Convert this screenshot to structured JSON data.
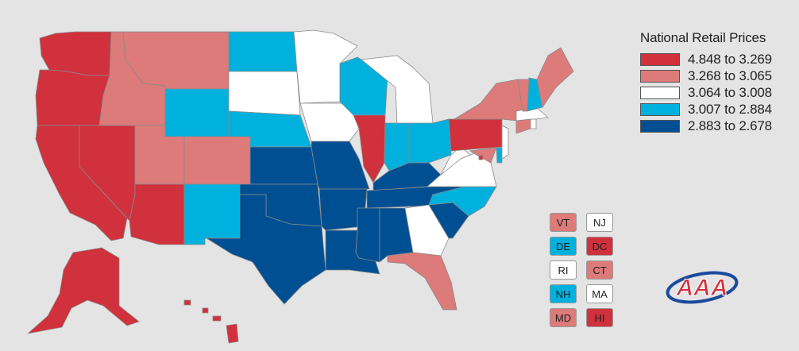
{
  "legend": {
    "title": "National Retail Prices",
    "items": [
      {
        "label": "4.848 to 3.269",
        "color": "#d0313c"
      },
      {
        "label": "3.268 to 3.065",
        "color": "#dd7a7a"
      },
      {
        "label": "3.064 to 3.008",
        "color": "#ffffff"
      },
      {
        "label": "3.007 to 2.884",
        "color": "#00b1dd"
      },
      {
        "label": "2.883 to 2.678",
        "color": "#004f93"
      }
    ]
  },
  "small_states": [
    {
      "code": "VT",
      "color": "#dd7a7a"
    },
    {
      "code": "NJ",
      "color": "#ffffff"
    },
    {
      "code": "DE",
      "color": "#00b1dd"
    },
    {
      "code": "DC",
      "color": "#d0313c"
    },
    {
      "code": "RI",
      "color": "#ffffff"
    },
    {
      "code": "CT",
      "color": "#dd7a7a"
    },
    {
      "code": "NH",
      "color": "#00b1dd"
    },
    {
      "code": "MA",
      "color": "#ffffff"
    },
    {
      "code": "MD",
      "color": "#dd7a7a"
    },
    {
      "code": "HI",
      "color": "#d0313c"
    }
  ],
  "logo": {
    "text": "AAA",
    "icon": "aaa-logo-icon"
  },
  "state_bins": {
    "WA": 0,
    "OR": 0,
    "CA": 0,
    "NV": 0,
    "AZ": 0,
    "AK": 0,
    "HI": 0,
    "IL": 0,
    "PA": 0,
    "DC": 0,
    "ID": 1,
    "MT": 1,
    "UT": 1,
    "CO": 1,
    "NY": 1,
    "ME": 1,
    "VT": 1,
    "CT": 1,
    "MD": 1,
    "FL": 1,
    "MN": 2,
    "SD": 2,
    "IA": 2,
    "MI": 2,
    "WV": 2,
    "VA": 2,
    "GA": 2,
    "NJ": 2,
    "MA": 2,
    "RI": 2,
    "WY": 3,
    "ND": 3,
    "NE": 3,
    "NM": 3,
    "WI": 3,
    "IN": 3,
    "OH": 3,
    "NC": 3,
    "NH": 3,
    "DE": 3,
    "KS": 4,
    "OK": 4,
    "TX": 4,
    "MO": 4,
    "AR": 4,
    "LA": 4,
    "KY": 4,
    "TN": 4,
    "MS": 4,
    "AL": 4,
    "SC": 4
  }
}
